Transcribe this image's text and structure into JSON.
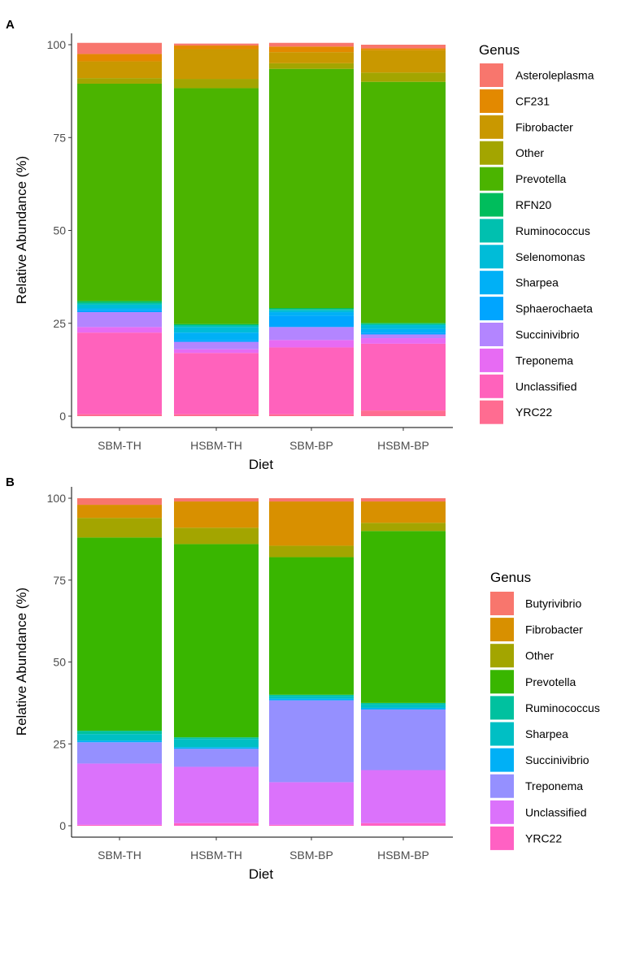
{
  "chart_data": [
    {
      "type": "bar",
      "stacked": true,
      "panel_label": "A",
      "title": "",
      "xlabel": "Diet",
      "ylabel": "Relative Abundance (%)",
      "ylim": [
        0,
        100
      ],
      "yticks": [
        "0",
        "25",
        "50",
        "75",
        "100"
      ],
      "categories": [
        "SBM-TH",
        "HSBM-TH",
        "SBM-BP",
        "HSBM-BP"
      ],
      "legend_title": "Genus",
      "legend_position": "right",
      "series": [
        {
          "name": "YRC22",
          "color": "#FF6C91",
          "values": [
            0.5,
            0.5,
            0.5,
            1.5
          ]
        },
        {
          "name": "Unclassified",
          "color": "#FF62BC",
          "values": [
            22,
            16.5,
            18,
            18
          ]
        },
        {
          "name": "Treponema",
          "color": "#E76BF3",
          "values": [
            1.5,
            1,
            2,
            1.5
          ]
        },
        {
          "name": "Succinivibrio",
          "color": "#B385FF",
          "values": [
            4,
            2,
            3.5,
            1
          ]
        },
        {
          "name": "Sphaerochaeta",
          "color": "#00A5FF",
          "values": [
            0.5,
            0.5,
            3,
            0.5
          ]
        },
        {
          "name": "Sharpea",
          "color": "#00B0F6",
          "values": [
            0.5,
            2,
            1,
            1
          ]
        },
        {
          "name": "Selenomonas",
          "color": "#00BCD8",
          "values": [
            1,
            1.5,
            0.5,
            1
          ]
        },
        {
          "name": "Ruminococcus",
          "color": "#00C0AF",
          "values": [
            0.5,
            0.5,
            0.3,
            0.3
          ]
        },
        {
          "name": "RFN20",
          "color": "#00BD5C",
          "values": [
            0.5,
            0.3,
            0.3,
            0.3
          ]
        },
        {
          "name": "Prevotella",
          "color": "#4BB400",
          "values": [
            58.5,
            63.5,
            64.4,
            64.9
          ]
        },
        {
          "name": "Other",
          "color": "#A3A500",
          "values": [
            1.5,
            2.5,
            1.5,
            2.5
          ]
        },
        {
          "name": "Fibrobacter",
          "color": "#C99800",
          "values": [
            4.5,
            8,
            3,
            6
          ]
        },
        {
          "name": "CF231",
          "color": "#E38900",
          "values": [
            2,
            1,
            1.5,
            0.5
          ]
        },
        {
          "name": "Asteroleplasma",
          "color": "#F8766D",
          "values": [
            3,
            0.5,
            1,
            1
          ]
        }
      ],
      "legend_order": [
        "Asteroleplasma",
        "CF231",
        "Fibrobacter",
        "Other",
        "Prevotella",
        "RFN20",
        "Ruminococcus",
        "Selenomonas",
        "Sharpea",
        "Sphaerochaeta",
        "Succinivibrio",
        "Treponema",
        "Unclassified",
        "YRC22"
      ]
    },
    {
      "type": "bar",
      "stacked": true,
      "panel_label": "B",
      "title": "",
      "xlabel": "Diet",
      "ylabel": "Relative Abundance (%)",
      "ylim": [
        0,
        100
      ],
      "yticks": [
        "0",
        "25",
        "50",
        "75",
        "100"
      ],
      "categories": [
        "SBM-TH",
        "HSBM-TH",
        "SBM-BP",
        "HSBM-BP"
      ],
      "legend_title": "Genus",
      "legend_position": "right",
      "series": [
        {
          "name": "YRC22",
          "color": "#FF61C3",
          "values": [
            0.3,
            0.8,
            0.3,
            0.8
          ]
        },
        {
          "name": "Unclassified",
          "color": "#DB72FB",
          "values": [
            18.7,
            17.2,
            13,
            16.2
          ]
        },
        {
          "name": "Treponema",
          "color": "#9590FF",
          "values": [
            6.5,
            5.5,
            25,
            18.5
          ]
        },
        {
          "name": "Succinivibrio",
          "color": "#00B0F6",
          "values": [
            0.5,
            0.5,
            0.5,
            0.5
          ]
        },
        {
          "name": "Sharpea",
          "color": "#00BFC4",
          "values": [
            2,
            2.5,
            0.7,
            1
          ]
        },
        {
          "name": "Ruminococcus",
          "color": "#00C19F",
          "values": [
            1,
            0.5,
            0.5,
            0.5
          ]
        },
        {
          "name": "Prevotella",
          "color": "#39B600",
          "values": [
            59,
            59,
            42,
            52.5
          ]
        },
        {
          "name": "Other",
          "color": "#A3A500",
          "values": [
            6,
            5,
            3.5,
            2.5
          ]
        },
        {
          "name": "Fibrobacter",
          "color": "#D89000",
          "values": [
            4,
            8,
            13.5,
            6.5
          ]
        },
        {
          "name": "Butyrivibrio",
          "color": "#F8766D",
          "values": [
            2,
            1,
            1,
            1
          ]
        }
      ],
      "legend_order": [
        "Butyrivibrio",
        "Fibrobacter",
        "Other",
        "Prevotella",
        "Ruminococcus",
        "Sharpea",
        "Succinivibrio",
        "Treponema",
        "Unclassified",
        "YRC22"
      ]
    }
  ]
}
